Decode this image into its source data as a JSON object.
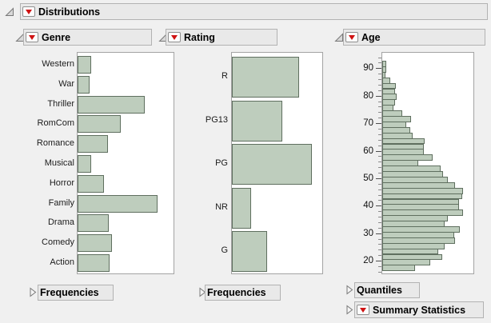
{
  "report": {
    "title": "Distributions"
  },
  "panels": [
    {
      "title": "Genre",
      "footer": {
        "label": "Frequencies"
      }
    },
    {
      "title": "Rating",
      "footer": {
        "label": "Frequencies"
      }
    },
    {
      "title": "Age",
      "footers": [
        {
          "label": "Quantiles"
        },
        {
          "label": "Summary Statistics"
        }
      ]
    }
  ],
  "icons": {
    "disclosure_open": "open triangle (expanded outline node)",
    "disclosure_collapsed": "right-pointing triangle (collapsed outline node)",
    "red_triangle_menu": "red down triangle options menu"
  },
  "colors": {
    "background": "#f0f0f0",
    "box_bg": "#e9e9e9",
    "box_border": "#b2b2b2",
    "plot_border": "#a3a3a3",
    "bar_fill": "#becdbd",
    "bar_border": "#5f6f5f",
    "accent_red": "#cf1212"
  },
  "chart_data": [
    {
      "type": "bar",
      "orientation": "horizontal",
      "title": "Genre",
      "categories": [
        "Western",
        "War",
        "Thriller",
        "RomCom",
        "Romance",
        "Musical",
        "Horror",
        "Family",
        "Drama",
        "Comedy",
        "Action"
      ],
      "values_rel": [
        0.14,
        0.125,
        0.7,
        0.45,
        0.32,
        0.14,
        0.275,
        0.835,
        0.325,
        0.36,
        0.33
      ],
      "value_scale": "fraction of plot width (no frequency axis shown)",
      "xlabel": "",
      "ylabel": "",
      "grid": false,
      "legend": false
    },
    {
      "type": "bar",
      "orientation": "horizontal",
      "title": "Rating",
      "categories": [
        "R",
        "PG13",
        "PG",
        "NR",
        "G"
      ],
      "values_rel": [
        0.74,
        0.56,
        0.885,
        0.21,
        0.39
      ],
      "value_scale": "fraction of plot width (no frequency axis shown)",
      "xlabel": "",
      "ylabel": "",
      "grid": false,
      "legend": false
    },
    {
      "type": "histogram",
      "orientation": "horizontal",
      "title": "Age",
      "bin_width": 2,
      "bin_start_top": 93,
      "age_bin_upper_edges": [
        93,
        91,
        89,
        87,
        85,
        83,
        81,
        79,
        77,
        75,
        73,
        71,
        69,
        67,
        65,
        63,
        61,
        59,
        57,
        55,
        53,
        51,
        49,
        47,
        45,
        43,
        41,
        39,
        37,
        35,
        33,
        31,
        29,
        27,
        25,
        23,
        21,
        19
      ],
      "values_rel": [
        0.044,
        0.044,
        0.035,
        0.088,
        0.149,
        0.14,
        0.158,
        0.14,
        0.123,
        0.219,
        0.316,
        0.263,
        0.307,
        0.333,
        0.465,
        0.456,
        0.456,
        0.553,
        0.395,
        0.64,
        0.667,
        0.719,
        0.798,
        0.886,
        0.877,
        0.842,
        0.842,
        0.886,
        0.719,
        0.684,
        0.851,
        0.789,
        0.798,
        0.684,
        0.614,
        0.658,
        0.526,
        0.36
      ],
      "value_scale": "fraction of plot width (no frequency axis shown)",
      "y_ticks": [
        90,
        80,
        70,
        60,
        50,
        40,
        30,
        20
      ],
      "minor_tick_step": 2,
      "xlabel": "",
      "ylabel": "",
      "grid": false,
      "legend": false
    }
  ]
}
